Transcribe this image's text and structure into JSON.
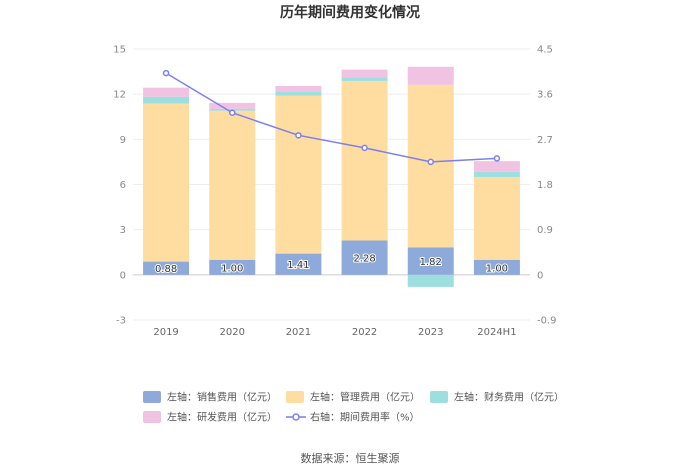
{
  "chart_data": {
    "type": "bar",
    "title": "历年期间费用变化情况",
    "source": "数据来源：恒生聚源",
    "categories": [
      "2019",
      "2020",
      "2021",
      "2022",
      "2023",
      "2024H1"
    ],
    "left_axis": {
      "ticks": [
        "15",
        "12",
        "9",
        "6",
        "3",
        "0",
        "-3"
      ],
      "ylim": [
        -3,
        15
      ]
    },
    "right_axis": {
      "ticks": [
        "4.5",
        "3.6",
        "2.7",
        "1.8",
        "0.9",
        "0",
        "-0.9"
      ],
      "ylim": [
        -0.9,
        4.5
      ]
    },
    "series": [
      {
        "name": "左轴：销售费用（亿元）",
        "kind": "bar",
        "color": "#8eaadb",
        "values": [
          0.88,
          1.0,
          1.41,
          2.28,
          1.82,
          1.0
        ],
        "labels": [
          "0.88",
          "1.00",
          "1.41",
          "2.28",
          "1.82",
          "1.00"
        ]
      },
      {
        "name": "左轴：管理费用（亿元）",
        "kind": "bar",
        "color": "#ffdc9f",
        "values": [
          10.5,
          9.9,
          10.5,
          10.6,
          10.8,
          5.5
        ]
      },
      {
        "name": "左轴：财务费用（亿元）",
        "kind": "bar",
        "color": "#9ddfdf",
        "values": [
          0.45,
          0.12,
          0.28,
          0.25,
          -0.8,
          0.35
        ]
      },
      {
        "name": "左轴：研发费用（亿元）",
        "kind": "bar",
        "color": "#f0c3e2",
        "values": [
          0.6,
          0.4,
          0.35,
          0.5,
          1.2,
          0.7
        ]
      },
      {
        "name": "右轴：期间费用率（%）",
        "kind": "line",
        "color": "#7b7ff0",
        "values": [
          4.02,
          3.23,
          2.78,
          2.53,
          2.25,
          2.32
        ]
      }
    ],
    "grid": true,
    "legend_position": "bottom"
  }
}
